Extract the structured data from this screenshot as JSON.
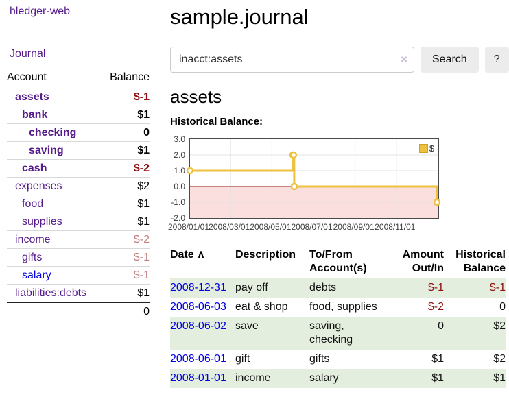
{
  "colors": {
    "accent_purple": "#551a8b",
    "link_blue": "#0000e0",
    "negative": "#8f1010",
    "negative_faded": "#c17f7f",
    "row_stripe": "#e4eede",
    "chart_line": "#edc240",
    "chart_negative_bg": "#fbdede",
    "chart_zero_line": "#932121",
    "chart_border": "#4a4a4a",
    "chart_grid": "#e3e3e3",
    "button_bg": "#ececec",
    "clear_icon": "#c5b9d6",
    "border_light": "#d8d8d8"
  },
  "sidebar": {
    "brand": "hledger-web",
    "nav": {
      "journal": "Journal"
    },
    "accounts_header": {
      "account": "Account",
      "balance": "Balance"
    },
    "accounts": [
      {
        "name": "assets",
        "balance": "$-1"
      },
      {
        "name": "bank",
        "balance": "$1"
      },
      {
        "name": "checking",
        "balance": "0"
      },
      {
        "name": "saving",
        "balance": "$1"
      },
      {
        "name": "cash",
        "balance": "$-2"
      },
      {
        "name": "expenses",
        "balance": "$2"
      },
      {
        "name": "food",
        "balance": "$1"
      },
      {
        "name": "supplies",
        "balance": "$1"
      },
      {
        "name": "income",
        "balance": "$-2"
      },
      {
        "name": "gifts",
        "balance": "$-1"
      },
      {
        "name": "salary",
        "balance": "$-1"
      },
      {
        "name": "liabilities:debts",
        "balance": "$1"
      }
    ],
    "total": "0"
  },
  "header": {
    "title": "sample.journal"
  },
  "search": {
    "query": "inacct:assets",
    "clear_icon": "×",
    "button": "Search",
    "help_button": "?"
  },
  "account_page": {
    "heading": "assets",
    "chart_label": "Historical Balance:"
  },
  "chart_data": {
    "type": "line",
    "step": true,
    "title": "Historical Balance:",
    "x_min": "2008-01-01",
    "x_max": "2009-01-01",
    "y_min": -2,
    "y_max": 3,
    "grid": true,
    "legend_position": "top-right",
    "y_ticks": [
      {
        "v": 3,
        "label": "3.0"
      },
      {
        "v": 2,
        "label": "2.0"
      },
      {
        "v": 1,
        "label": "1.0"
      },
      {
        "v": 0,
        "label": "0.0"
      },
      {
        "v": -1,
        "label": "-1.0"
      },
      {
        "v": -2,
        "label": "-2.0"
      }
    ],
    "x_ticks": [
      {
        "d": "2008-01-01",
        "label": "2008/01/01"
      },
      {
        "d": "2008-03-01",
        "label": "2008/03/01"
      },
      {
        "d": "2008-05-01",
        "label": "2008/05/01"
      },
      {
        "d": "2008-07-01",
        "label": "2008/07/01"
      },
      {
        "d": "2008-09-01",
        "label": "2008/09/01"
      },
      {
        "d": "2008-11-01",
        "label": "2008/11/01"
      }
    ],
    "series": [
      {
        "name": "$",
        "color": "#edc240",
        "points": [
          [
            "2008-01-01",
            1
          ],
          [
            "2008-06-01",
            2
          ],
          [
            "2008-06-02",
            2
          ],
          [
            "2008-06-03",
            0
          ],
          [
            "2008-12-31",
            -1
          ]
        ]
      }
    ]
  },
  "table": {
    "headers": {
      "date": "Date",
      "sort_indicator": "∧",
      "description": "Description",
      "to_from": "To/From Account(s)",
      "amount": "Amount Out/In",
      "balance": "Historical Balance"
    },
    "rows": [
      {
        "date": "2008-12-31",
        "description": "pay off",
        "to_from": "debts",
        "amount": "$-1",
        "balance": "$-1"
      },
      {
        "date": "2008-06-03",
        "description": "eat & shop",
        "to_from": "food, supplies",
        "amount": "$-2",
        "balance": "0"
      },
      {
        "date": "2008-06-02",
        "description": "save",
        "to_from": "saving,\nchecking",
        "amount": "0",
        "balance": "$2"
      },
      {
        "date": "2008-06-01",
        "description": "gift",
        "to_from": "gifts",
        "amount": "$1",
        "balance": "$2"
      },
      {
        "date": "2008-01-01",
        "description": "income",
        "to_from": "salary",
        "amount": "$1",
        "balance": "$1"
      }
    ]
  }
}
